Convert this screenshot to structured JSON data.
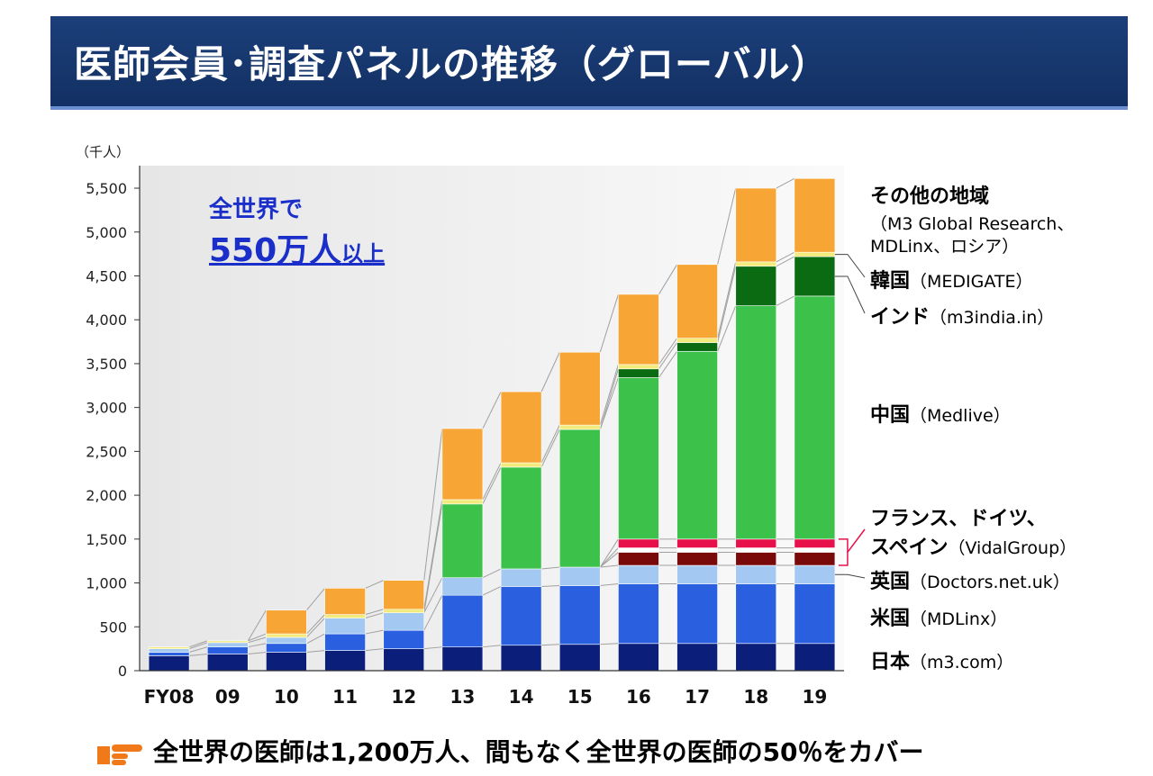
{
  "title": "医師会員･調査パネルの推移（グローバル）",
  "unit_label": "（千人）",
  "callout": {
    "line1": "全世界で",
    "line2_big": "550万人",
    "line2_small": "以上"
  },
  "footer": "全世界の医師は1,200万人、間もなく全世界の医師の50％をカバー",
  "legend": [
    {
      "name": "その他の地域",
      "sub": "（M3 Global Research、",
      "sub2": "MDLinx、ロシア）"
    },
    {
      "name": "韓国",
      "sub": "（MEDIGATE）"
    },
    {
      "name": "インド",
      "sub": "（m3india.in）"
    },
    {
      "name": "中国",
      "sub": "（Medlive）"
    },
    {
      "name": "フランス、ドイツ、",
      "name2": "スペイン",
      "sub": "（VidalGroup）"
    },
    {
      "name": "英国",
      "sub": "（Doctors.net.uk）"
    },
    {
      "name": "米国",
      "sub": "（MDLinx）"
    },
    {
      "name": "日本",
      "sub": "（m3.com）"
    }
  ],
  "chart_data": {
    "type": "bar",
    "stacked": true,
    "ylabel": "（千人）",
    "ylim": [
      0,
      5700
    ],
    "yticks": [
      0,
      500,
      1000,
      1500,
      2000,
      2500,
      3000,
      3500,
      4000,
      4500,
      5000,
      5500
    ],
    "ytick_labels": [
      "0",
      "500",
      "1,000",
      "1,500",
      "2,000",
      "2,500",
      "3,000",
      "3,500",
      "4,000",
      "4,500",
      "5,000",
      "5,500"
    ],
    "categories": [
      "FY08",
      "09",
      "10",
      "11",
      "12",
      "13",
      "14",
      "15",
      "16",
      "17",
      "18",
      "19"
    ],
    "series": [
      {
        "name": "日本",
        "color": "#0b1f7a",
        "values": [
          170,
          190,
          210,
          230,
          250,
          270,
          290,
          300,
          310,
          310,
          310,
          310
        ]
      },
      {
        "name": "米国",
        "color": "#2a5fe0",
        "values": [
          40,
          80,
          100,
          190,
          210,
          590,
          670,
          670,
          680,
          680,
          680,
          680
        ]
      },
      {
        "name": "英国",
        "color": "#a3c8f2",
        "values": [
          40,
          50,
          70,
          180,
          200,
          200,
          200,
          210,
          210,
          210,
          210,
          210
        ]
      },
      {
        "name": "スペイン",
        "color": "#7a0a0a",
        "values": [
          0,
          0,
          0,
          0,
          0,
          0,
          0,
          0,
          150,
          150,
          150,
          150
        ]
      },
      {
        "name": "ドイツ",
        "color": "#ffffff",
        "values": [
          0,
          0,
          0,
          0,
          0,
          0,
          0,
          0,
          50,
          50,
          50,
          50
        ]
      },
      {
        "name": "フランス",
        "color": "#e8104a",
        "values": [
          0,
          0,
          0,
          0,
          0,
          0,
          0,
          0,
          100,
          100,
          100,
          100
        ]
      },
      {
        "name": "中国",
        "color": "#3cc24a",
        "values": [
          0,
          0,
          0,
          0,
          0,
          840,
          1160,
          1570,
          1840,
          2140,
          2660,
          2770
        ]
      },
      {
        "name": "インド",
        "color": "#0b6b12",
        "values": [
          0,
          0,
          0,
          0,
          0,
          0,
          0,
          0,
          100,
          100,
          450,
          450
        ]
      },
      {
        "name": "韓国",
        "color": "#f2ea7a",
        "values": [
          20,
          20,
          40,
          40,
          40,
          50,
          50,
          50,
          50,
          50,
          50,
          50
        ]
      },
      {
        "name": "その他の地域",
        "color": "#f7a535",
        "values": [
          0,
          0,
          270,
          300,
          330,
          810,
          810,
          830,
          800,
          840,
          840,
          840
        ]
      }
    ]
  }
}
